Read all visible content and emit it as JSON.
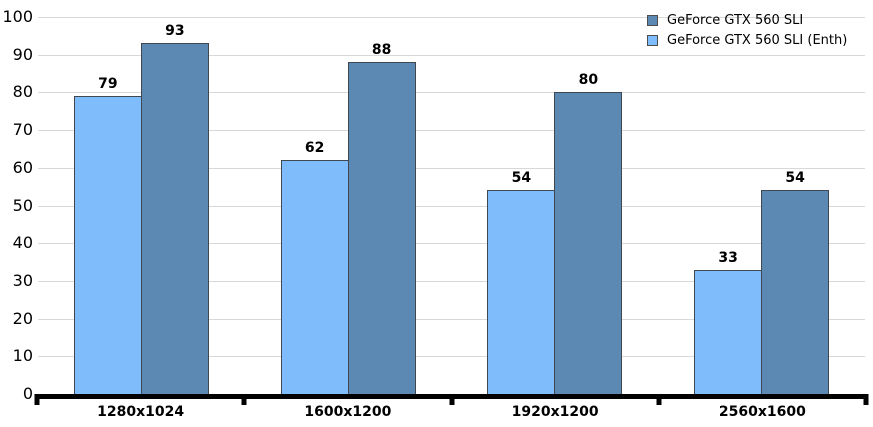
{
  "chart_data": {
    "type": "bar",
    "categories": [
      "1280x1024",
      "1600x1200",
      "1920x1200",
      "2560x1600"
    ],
    "series": [
      {
        "name": "GeForce GTX 560 SLI",
        "color": "#5c88b4",
        "values": [
          93,
          88,
          80,
          54
        ]
      },
      {
        "name": "GeForce GTX 560 SLI (Enth)",
        "color": "#7fbcfc",
        "values": [
          79,
          62,
          54,
          33
        ]
      }
    ],
    "bar_order_left_to_right": [
      "GeForce GTX 560 SLI (Enth)",
      "GeForce GTX 560 SLI"
    ],
    "title": "",
    "xlabel": "",
    "ylabel": "",
    "ylim": [
      0,
      100
    ],
    "yticks": [
      0,
      10,
      20,
      30,
      40,
      50,
      60,
      70,
      80,
      90,
      100
    ],
    "grid": true,
    "legend_position": "top-right",
    "colors": {
      "background": "#ffffff",
      "gridline": "#d8d8d8",
      "axis": "#000000",
      "bar_border": "#40474f",
      "text": "#000000"
    }
  }
}
